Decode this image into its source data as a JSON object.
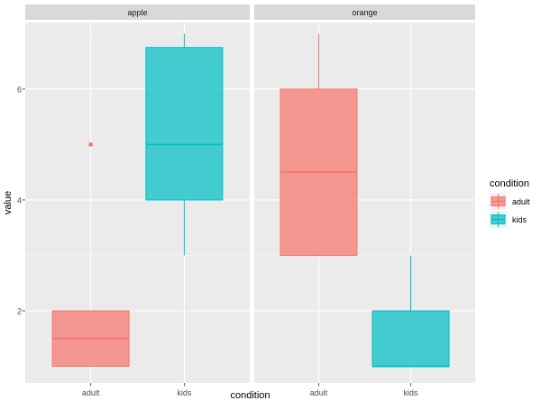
{
  "chart_data": {
    "type": "boxplot",
    "xlabel": "condition",
    "ylabel": "value",
    "ylim": [
      0.7,
      7.2
    ],
    "y_ticks": [
      2,
      4,
      6
    ],
    "categories": [
      "adult",
      "kids"
    ],
    "colors": {
      "adult": "#F8766D",
      "kids": "#00BFC4"
    },
    "facets": [
      {
        "label": "apple",
        "boxes": [
          {
            "category": "adult",
            "min": 1,
            "q1": 1,
            "median": 1.5,
            "q3": 2,
            "max": 2,
            "outliers": [
              5
            ]
          },
          {
            "category": "kids",
            "min": 3,
            "q1": 4,
            "median": 5,
            "q3": 6.75,
            "max": 7,
            "outliers": []
          }
        ]
      },
      {
        "label": "orange",
        "boxes": [
          {
            "category": "adult",
            "min": 3,
            "q1": 3,
            "median": 4.5,
            "q3": 6,
            "max": 7,
            "outliers": []
          },
          {
            "category": "kids",
            "min": 1,
            "q1": 1,
            "median": 1,
            "q3": 2,
            "max": 3,
            "outliers": []
          }
        ]
      }
    ],
    "legend": {
      "title": "condition",
      "items": [
        {
          "label": "adult",
          "category": "adult"
        },
        {
          "label": "kids",
          "category": "kids"
        }
      ],
      "position": "right"
    }
  }
}
